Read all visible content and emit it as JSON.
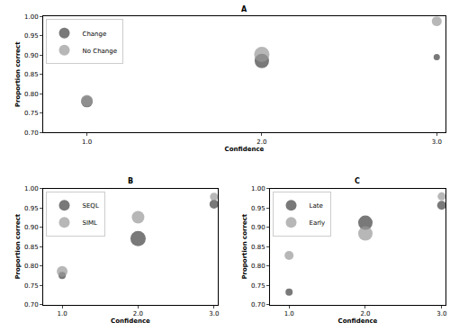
{
  "chart_data": [
    {
      "type": "scatter",
      "title": "A",
      "x_label": "Confidence",
      "y_label": "Proportion correct",
      "x": [
        1,
        2,
        3
      ],
      "series": [
        {
          "name": "Change",
          "color": "#404040",
          "values": [
            0.78,
            0.885,
            0.895
          ],
          "sizes": [
            13,
            16,
            7
          ]
        },
        {
          "name": "No Change",
          "color": "#999999",
          "values": [
            0.782,
            0.902,
            0.988
          ],
          "sizes": [
            13,
            17,
            11
          ]
        }
      ],
      "xlim": [
        0.75,
        3.05
      ],
      "xticks": [
        {
          "value": 1,
          "label": "1.0"
        },
        {
          "value": 2,
          "label": "2.0"
        },
        {
          "value": 3,
          "label": "3.0"
        }
      ],
      "ylim": [
        0.7,
        1.0
      ],
      "yticks": [
        {
          "value": 0.7,
          "label": "0.70"
        },
        {
          "value": 0.75,
          "label": "0.75"
        },
        {
          "value": 0.8,
          "label": "0.80"
        },
        {
          "value": 0.85,
          "label": "0.85"
        },
        {
          "value": 0.9,
          "label": "0.90"
        },
        {
          "value": 0.95,
          "label": "0.95"
        },
        {
          "value": 1.0,
          "label": "1.00"
        }
      ],
      "legend": "upper left",
      "grid": false
    },
    {
      "type": "scatter",
      "title": "B",
      "x_label": "Confidence",
      "y_label": "Proportion correct",
      "x": [
        1,
        2,
        3
      ],
      "series": [
        {
          "name": "SEQL",
          "color": "#404040",
          "values": [
            0.775,
            0.871,
            0.96
          ],
          "sizes": [
            8,
            17,
            10
          ]
        },
        {
          "name": "SIML",
          "color": "#999999",
          "values": [
            0.786,
            0.926,
            0.979
          ],
          "sizes": [
            12,
            14,
            9
          ]
        }
      ],
      "xlim": [
        0.75,
        3.05
      ],
      "xticks": [
        {
          "value": 1,
          "label": "1.0"
        },
        {
          "value": 2,
          "label": "2.0"
        },
        {
          "value": 3,
          "label": "3.0"
        }
      ],
      "ylim": [
        0.7,
        1.0
      ],
      "yticks": [
        {
          "value": 0.7,
          "label": "0.70"
        },
        {
          "value": 0.75,
          "label": "0.75"
        },
        {
          "value": 0.8,
          "label": "0.80"
        },
        {
          "value": 0.85,
          "label": "0.85"
        },
        {
          "value": 0.9,
          "label": "0.90"
        },
        {
          "value": 0.95,
          "label": "0.95"
        },
        {
          "value": 1.0,
          "label": "1.00"
        }
      ],
      "legend": "upper left",
      "grid": false
    },
    {
      "type": "scatter",
      "title": "C",
      "x_label": "Confidence",
      "y_label": "Proportion correct",
      "x": [
        1,
        2,
        3
      ],
      "series": [
        {
          "name": "Late",
          "color": "#404040",
          "values": [
            0.732,
            0.912,
            0.957
          ],
          "sizes": [
            8,
            16,
            10
          ]
        },
        {
          "name": "Early",
          "color": "#999999",
          "values": [
            0.827,
            0.884,
            0.98
          ],
          "sizes": [
            10,
            16,
            9
          ]
        }
      ],
      "xlim": [
        0.75,
        3.05
      ],
      "xticks": [
        {
          "value": 1,
          "label": "1.0"
        },
        {
          "value": 2,
          "label": "2.0"
        },
        {
          "value": 3,
          "label": "3.0"
        }
      ],
      "ylim": [
        0.7,
        1.0
      ],
      "yticks": [
        {
          "value": 0.7,
          "label": "0.70"
        },
        {
          "value": 0.75,
          "label": "0.75"
        },
        {
          "value": 0.8,
          "label": "0.80"
        },
        {
          "value": 0.85,
          "label": "0.85"
        },
        {
          "value": 0.9,
          "label": "0.90"
        },
        {
          "value": 0.95,
          "label": "0.95"
        },
        {
          "value": 1.0,
          "label": "1.00"
        }
      ],
      "legend": "upper left",
      "grid": false
    }
  ]
}
